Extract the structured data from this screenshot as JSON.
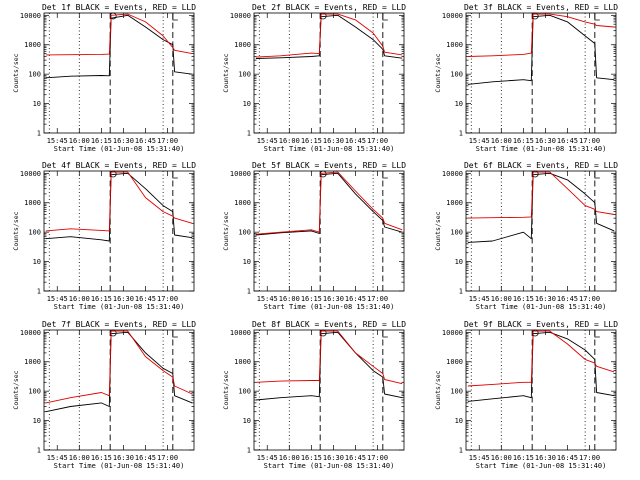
{
  "colors": {
    "events": "#000000",
    "lld": "#e00000",
    "background": "#ffffff"
  },
  "chart_data": {
    "type": "line",
    "x_units": "UT (hours), 01-Jun-08",
    "xlim": [
      15.6,
      17.3
    ],
    "ylim": [
      1,
      12000
    ],
    "y_scale": "log",
    "y_ticks": [
      1,
      10,
      100,
      1000,
      10000
    ],
    "y_tick_labels": [
      "1",
      "10",
      "100",
      "1000",
      "10000"
    ],
    "x_ticks": [
      15.75,
      16.0,
      16.25,
      16.5,
      16.75,
      17.0
    ],
    "x_tick_labels": [
      "15:45",
      "16:00",
      "16:15",
      "16:30",
      "16:45",
      "17:00"
    ],
    "xlabel": "Start Time (01-Jun-08 15:31:40)",
    "ylabel": "Counts/sec",
    "grid": false,
    "legend": "title",
    "markers": [
      {
        "type": "dotted",
        "x": 15.66
      },
      {
        "type": "dotted",
        "x": 16.0
      },
      {
        "type": "dashed",
        "x": 16.35
      },
      {
        "type": "dotted",
        "x": 16.95
      },
      {
        "type": "dashed",
        "x": 17.06
      }
    ],
    "panels": [
      {
        "title": "Det 1f BLACK = Events, RED = LLD",
        "series": [
          {
            "name": "Events",
            "color": "#000000",
            "x": [
              15.62,
              15.9,
              16.25,
              16.34,
              16.36,
              16.55,
              16.75,
              16.95,
              17.06,
              17.08,
              17.28
            ],
            "y": [
              75,
              85,
              90,
              88,
              8000,
              10000,
              4000,
              1500,
              1000,
              120,
              100
            ]
          },
          {
            "name": "LLD",
            "color": "#e00000",
            "x": [
              15.62,
              15.9,
              16.25,
              16.34,
              16.36,
              16.55,
              16.75,
              16.95,
              17.06,
              17.08,
              17.28
            ],
            "y": [
              450,
              460,
              470,
              480,
              10000,
              11000,
              6000,
              2000,
              800,
              650,
              500
            ]
          }
        ]
      },
      {
        "title": "Det 2f BLACK = Events, RED = LLD",
        "series": [
          {
            "name": "Events",
            "color": "#000000",
            "x": [
              15.62,
              15.9,
              16.25,
              16.34,
              16.36,
              16.55,
              16.75,
              16.95,
              17.06,
              17.08,
              17.28
            ],
            "y": [
              340,
              360,
              400,
              420,
              9000,
              10000,
              4000,
              1500,
              700,
              420,
              350
            ]
          },
          {
            "name": "LLD",
            "color": "#e00000",
            "x": [
              15.62,
              15.9,
              16.25,
              16.34,
              16.36,
              16.55,
              16.75,
              16.95,
              17.06,
              17.08,
              17.28
            ],
            "y": [
              380,
              420,
              520,
              500,
              11000,
              11000,
              7000,
              2500,
              900,
              560,
              450
            ]
          }
        ]
      },
      {
        "title": "Det 3f BLACK = Events, RED = LLD",
        "series": [
          {
            "name": "Events",
            "color": "#000000",
            "x": [
              15.62,
              15.9,
              16.25,
              16.34,
              16.36,
              16.55,
              16.75,
              16.95,
              17.06,
              17.08,
              17.28
            ],
            "y": [
              45,
              55,
              65,
              60,
              9000,
              10000,
              6000,
              2000,
              1100,
              75,
              65
            ]
          },
          {
            "name": "LLD",
            "color": "#e00000",
            "x": [
              15.62,
              15.9,
              16.25,
              16.34,
              16.36,
              16.55,
              16.75,
              16.95,
              17.06,
              17.08,
              17.28
            ],
            "y": [
              400,
              420,
              470,
              520,
              11000,
              11000,
              9000,
              6000,
              5000,
              4500,
              4000
            ]
          }
        ]
      },
      {
        "title": "Det 4f BLACK = Events, RED = LLD",
        "series": [
          {
            "name": "Events",
            "color": "#000000",
            "x": [
              15.62,
              15.9,
              16.25,
              16.34,
              16.36,
              16.55,
              16.75,
              16.95,
              17.06,
              17.08,
              17.28
            ],
            "y": [
              60,
              70,
              55,
              50,
              9000,
              10000,
              3000,
              800,
              500,
              80,
              65
            ]
          },
          {
            "name": "LLD",
            "color": "#e00000",
            "x": [
              15.62,
              15.9,
              16.25,
              16.34,
              16.36,
              16.55,
              16.75,
              16.95,
              17.06,
              17.08,
              17.28
            ],
            "y": [
              110,
              130,
              115,
              110,
              11000,
              11000,
              1500,
              500,
              350,
              300,
              200
            ]
          }
        ]
      },
      {
        "title": "Det 5f BLACK = Events, RED = LLD",
        "series": [
          {
            "name": "Events",
            "color": "#000000",
            "x": [
              15.62,
              15.9,
              16.25,
              16.34,
              16.36,
              16.55,
              16.75,
              16.95,
              17.06,
              17.08,
              17.28
            ],
            "y": [
              80,
              95,
              110,
              90,
              9000,
              10000,
              2000,
              500,
              250,
              150,
              100
            ]
          },
          {
            "name": "LLD",
            "color": "#e00000",
            "x": [
              15.62,
              15.9,
              16.25,
              16.34,
              16.36,
              16.55,
              16.75,
              16.95,
              17.06,
              17.08,
              17.28
            ],
            "y": [
              85,
              100,
              120,
              100,
              10000,
              11000,
              2500,
              600,
              300,
              200,
              120
            ]
          }
        ]
      },
      {
        "title": "Det 6f BLACK = Events, RED = LLD",
        "series": [
          {
            "name": "Events",
            "color": "#000000",
            "x": [
              15.62,
              15.9,
              16.25,
              16.34,
              16.36,
              16.55,
              16.75,
              16.95,
              17.06,
              17.08,
              17.28
            ],
            "y": [
              45,
              50,
              100,
              60,
              9000,
              10000,
              6000,
              2000,
              1000,
              200,
              110
            ]
          },
          {
            "name": "LLD",
            "color": "#e00000",
            "x": [
              15.62,
              15.9,
              16.25,
              16.34,
              16.36,
              16.55,
              16.75,
              16.95,
              17.06,
              17.08,
              17.28
            ],
            "y": [
              300,
              310,
              320,
              330,
              11000,
              11000,
              3000,
              800,
              600,
              500,
              400
            ]
          }
        ]
      },
      {
        "title": "Det 7f BLACK = Events, RED = LLD",
        "series": [
          {
            "name": "Events",
            "color": "#000000",
            "x": [
              15.62,
              15.9,
              16.25,
              16.34,
              16.36,
              16.55,
              16.75,
              16.95,
              17.06,
              17.08,
              17.28
            ],
            "y": [
              20,
              30,
              40,
              30,
              9000,
              10000,
              2000,
              600,
              400,
              70,
              40
            ]
          },
          {
            "name": "LLD",
            "color": "#e00000",
            "x": [
              15.62,
              15.9,
              16.25,
              16.34,
              16.36,
              16.55,
              16.75,
              16.95,
              17.06,
              17.08,
              17.28
            ],
            "y": [
              40,
              60,
              90,
              70,
              11000,
              11000,
              1500,
              500,
              300,
              150,
              80
            ]
          }
        ]
      },
      {
        "title": "Det 8f BLACK = Events, RED = LLD",
        "series": [
          {
            "name": "Events",
            "color": "#000000",
            "x": [
              15.62,
              15.9,
              16.25,
              16.34,
              16.36,
              16.55,
              16.75,
              16.95,
              17.06,
              17.08,
              17.28
            ],
            "y": [
              50,
              60,
              70,
              65,
              9000,
              10000,
              2000,
              500,
              300,
              80,
              60
            ]
          },
          {
            "name": "LLD",
            "color": "#e00000",
            "x": [
              15.62,
              15.9,
              16.25,
              16.34,
              16.36,
              16.55,
              16.75,
              16.95,
              17.06,
              17.08,
              17.28
            ],
            "y": [
              200,
              220,
              230,
              230,
              11000,
              11000,
              2000,
              700,
              400,
              250,
              180
            ]
          }
        ]
      },
      {
        "title": "Det 9f BLACK = Events, RED = LLD",
        "series": [
          {
            "name": "Events",
            "color": "#000000",
            "x": [
              15.62,
              15.9,
              16.25,
              16.34,
              16.36,
              16.55,
              16.75,
              16.95,
              17.06,
              17.08,
              17.28
            ],
            "y": [
              45,
              55,
              70,
              60,
              9000,
              10000,
              6000,
              2500,
              1200,
              90,
              70
            ]
          },
          {
            "name": "LLD",
            "color": "#e00000",
            "x": [
              15.62,
              15.9,
              16.25,
              16.34,
              16.36,
              16.55,
              16.75,
              16.95,
              17.06,
              17.08,
              17.28
            ],
            "y": [
              150,
              170,
              200,
              200,
              11000,
              11000,
              4000,
              1200,
              900,
              700,
              450
            ]
          }
        ]
      }
    ]
  }
}
